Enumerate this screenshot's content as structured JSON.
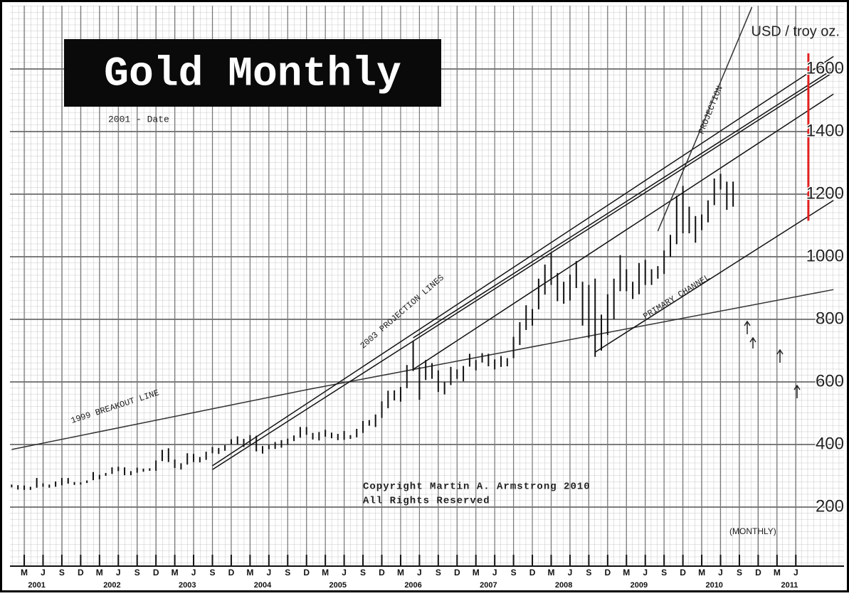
{
  "chart_data": {
    "type": "hilo",
    "title": "Gold Monthly",
    "subtitle": "2001 - Date",
    "y_label": "USD / troy oz.",
    "copyright": [
      "Copyright Martin A. Armstrong 2010",
      "All Rights Reserved"
    ],
    "note": "(MONTHLY)",
    "color": "#111111",
    "grid": true,
    "xlim": [
      "2001-01",
      "2012-01"
    ],
    "ylim": [
      0,
      1800
    ],
    "yticks": [
      200,
      400,
      600,
      800,
      1000,
      1200,
      1400,
      1600
    ],
    "xticks": [
      {
        "value": "2001-03",
        "label": "M"
      },
      {
        "value": "2001-06",
        "label": "J"
      },
      {
        "value": "2001-09",
        "label": "S"
      },
      {
        "value": "2001-12",
        "label": "D"
      },
      {
        "value": "2002-03",
        "label": "M"
      },
      {
        "value": "2002-06",
        "label": "J"
      },
      {
        "value": "2002-09",
        "label": "S"
      },
      {
        "value": "2002-12",
        "label": "D"
      },
      {
        "value": "2003-03",
        "label": "M"
      },
      {
        "value": "2003-06",
        "label": "J"
      },
      {
        "value": "2003-09",
        "label": "S"
      },
      {
        "value": "2003-12",
        "label": "D"
      },
      {
        "value": "2004-03",
        "label": "M"
      },
      {
        "value": "2004-06",
        "label": "J"
      },
      {
        "value": "2004-09",
        "label": "S"
      },
      {
        "value": "2004-12",
        "label": "D"
      },
      {
        "value": "2005-03",
        "label": "M"
      },
      {
        "value": "2005-06",
        "label": "J"
      },
      {
        "value": "2005-09",
        "label": "S"
      },
      {
        "value": "2005-12",
        "label": "D"
      },
      {
        "value": "2006-03",
        "label": "M"
      },
      {
        "value": "2006-06",
        "label": "J"
      },
      {
        "value": "2006-09",
        "label": "S"
      },
      {
        "value": "2006-12",
        "label": "D"
      },
      {
        "value": "2007-03",
        "label": "M"
      },
      {
        "value": "2007-06",
        "label": "J"
      },
      {
        "value": "2007-09",
        "label": "S"
      },
      {
        "value": "2007-12",
        "label": "D"
      },
      {
        "value": "2008-03",
        "label": "M"
      },
      {
        "value": "2008-06",
        "label": "J"
      },
      {
        "value": "2008-09",
        "label": "S"
      },
      {
        "value": "2008-12",
        "label": "D"
      },
      {
        "value": "2009-03",
        "label": "M"
      },
      {
        "value": "2009-06",
        "label": "J"
      },
      {
        "value": "2009-09",
        "label": "S"
      },
      {
        "value": "2009-12",
        "label": "D"
      },
      {
        "value": "2010-03",
        "label": "M"
      },
      {
        "value": "2010-06",
        "label": "J"
      },
      {
        "value": "2010-09",
        "label": "S"
      },
      {
        "value": "2010-12",
        "label": "D"
      },
      {
        "value": "2011-03",
        "label": "M"
      },
      {
        "value": "2011-06",
        "label": "J"
      }
    ],
    "year_labels": [
      {
        "value": "2001-05",
        "label": "2001"
      },
      {
        "value": "2002-05",
        "label": "2002"
      },
      {
        "value": "2003-05",
        "label": "2003"
      },
      {
        "value": "2004-05",
        "label": "2004"
      },
      {
        "value": "2005-05",
        "label": "2005"
      },
      {
        "value": "2006-05",
        "label": "2006"
      },
      {
        "value": "2007-05",
        "label": "2007"
      },
      {
        "value": "2008-05",
        "label": "2008"
      },
      {
        "value": "2009-05",
        "label": "2009"
      },
      {
        "value": "2010-05",
        "label": "2010"
      },
      {
        "value": "2011-05",
        "label": "2011"
      }
    ],
    "x": [
      "2001-01",
      "2001-02",
      "2001-03",
      "2001-04",
      "2001-05",
      "2001-06",
      "2001-07",
      "2001-08",
      "2001-09",
      "2001-10",
      "2001-11",
      "2001-12",
      "2002-01",
      "2002-02",
      "2002-03",
      "2002-04",
      "2002-05",
      "2002-06",
      "2002-07",
      "2002-08",
      "2002-09",
      "2002-10",
      "2002-11",
      "2002-12",
      "2003-01",
      "2003-02",
      "2003-03",
      "2003-04",
      "2003-05",
      "2003-06",
      "2003-07",
      "2003-08",
      "2003-09",
      "2003-10",
      "2003-11",
      "2003-12",
      "2004-01",
      "2004-02",
      "2004-03",
      "2004-04",
      "2004-05",
      "2004-06",
      "2004-07",
      "2004-08",
      "2004-09",
      "2004-10",
      "2004-11",
      "2004-12",
      "2005-01",
      "2005-02",
      "2005-03",
      "2005-04",
      "2005-05",
      "2005-06",
      "2005-07",
      "2005-08",
      "2005-09",
      "2005-10",
      "2005-11",
      "2005-12",
      "2006-01",
      "2006-02",
      "2006-03",
      "2006-04",
      "2006-05",
      "2006-06",
      "2006-07",
      "2006-08",
      "2006-09",
      "2006-10",
      "2006-11",
      "2006-12",
      "2007-01",
      "2007-02",
      "2007-03",
      "2007-04",
      "2007-05",
      "2007-06",
      "2007-07",
      "2007-08",
      "2007-09",
      "2007-10",
      "2007-11",
      "2007-12",
      "2008-01",
      "2008-02",
      "2008-03",
      "2008-04",
      "2008-05",
      "2008-06",
      "2008-07",
      "2008-08",
      "2008-09",
      "2008-10",
      "2008-11",
      "2008-12",
      "2009-01",
      "2009-02",
      "2009-03",
      "2009-04",
      "2009-05",
      "2009-06",
      "2009-07",
      "2009-08",
      "2009-09",
      "2009-10",
      "2009-11",
      "2009-12",
      "2010-01",
      "2010-02",
      "2010-03",
      "2010-04",
      "2010-05",
      "2010-06",
      "2010-07",
      "2010-08"
    ],
    "high": [
      272,
      270,
      269,
      265,
      293,
      276,
      272,
      282,
      293,
      293,
      280,
      279,
      285,
      312,
      303,
      309,
      327,
      329,
      327,
      315,
      326,
      323,
      324,
      349,
      383,
      388,
      352,
      340,
      372,
      370,
      360,
      377,
      392,
      389,
      398,
      417,
      426,
      418,
      430,
      428,
      395,
      399,
      408,
      414,
      419,
      429,
      456,
      456,
      437,
      440,
      447,
      438,
      434,
      443,
      430,
      450,
      475,
      478,
      496,
      538,
      572,
      573,
      584,
      654,
      730,
      648,
      670,
      660,
      637,
      600,
      648,
      640,
      651,
      690,
      670,
      692,
      690,
      672,
      683,
      676,
      744,
      791,
      845,
      833,
      930,
      975,
      1011,
      948,
      920,
      943,
      986,
      920,
      910,
      930,
      815,
      880,
      930,
      1005,
      960,
      920,
      980,
      990,
      960,
      970,
      1020,
      1070,
      1195,
      1226,
      1160,
      1130,
      1135,
      1180,
      1250,
      1265,
      1240,
      1240
    ],
    "low": [
      263,
      256,
      255,
      255,
      262,
      265,
      262,
      265,
      270,
      275,
      271,
      272,
      277,
      286,
      289,
      300,
      306,
      315,
      302,
      302,
      310,
      313,
      316,
      316,
      347,
      344,
      325,
      320,
      336,
      344,
      343,
      351,
      372,
      370,
      380,
      400,
      400,
      392,
      400,
      378,
      371,
      385,
      386,
      390,
      399,
      411,
      422,
      431,
      416,
      413,
      425,
      420,
      414,
      415,
      418,
      423,
      437,
      460,
      456,
      485,
      516,
      541,
      537,
      580,
      635,
      543,
      606,
      610,
      568,
      560,
      590,
      610,
      602,
      649,
      637,
      662,
      650,
      640,
      648,
      650,
      676,
      718,
      766,
      780,
      832,
      879,
      910,
      858,
      850,
      860,
      900,
      780,
      740,
      680,
      700,
      750,
      800,
      890,
      890,
      865,
      880,
      910,
      910,
      930,
      945,
      1000,
      1040,
      1075,
      1075,
      1045,
      1085,
      1110,
      1165,
      1215,
      1150,
      1160
    ],
    "trend_lines": [
      {
        "label": "1999 BREAKOUT LINE",
        "color": "#333333",
        "lines": [
          [
            [
              "2001-01",
              384
            ],
            [
              "2004-12",
              575
            ],
            [
              "2011-12",
              895
            ]
          ]
        ]
      },
      {
        "label": "2003 PROJECTION LINES",
        "color": "#111111",
        "lines": [
          [
            [
              "2003-09",
              332
            ],
            [
              "2011-12",
              1640
            ]
          ],
          [
            [
              "2003-09",
              320
            ],
            [
              "2011-12",
              1590
            ]
          ],
          [
            [
              "2006-05",
              741
            ],
            [
              "2011-12",
              1600
            ]
          ],
          [
            [
              "2006-05",
              640
            ],
            [
              "2011-12",
              1520
            ]
          ]
        ]
      },
      {
        "label": "PROJECTION",
        "color": "#333333",
        "lines": [
          [
            [
              "2009-08",
              1082
            ],
            [
              "2010-11",
              1798
            ]
          ]
        ]
      },
      {
        "label": "PRIMARY CHANNEL",
        "color": "#111111",
        "lines": [
          [
            [
              "2008-10",
              695
            ],
            [
              "2011-12",
              1180
            ]
          ]
        ]
      },
      {
        "color": "#e02020",
        "lines": [
          [
            [
              "2011-08",
              1650
            ],
            [
              "2011-08",
              1115
            ]
          ]
        ]
      }
    ]
  }
}
